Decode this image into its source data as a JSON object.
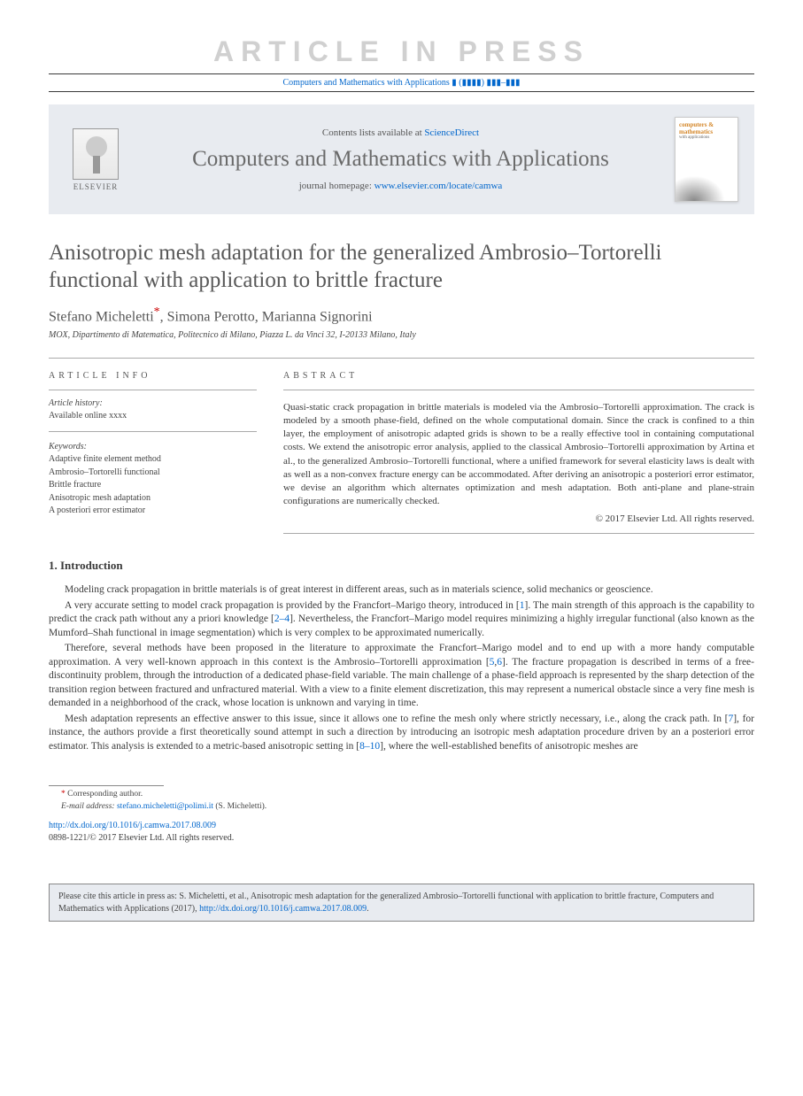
{
  "banner": "ARTICLE IN PRESS",
  "top_citation": "Computers and Mathematics with Applications ▮ (▮▮▮▮) ▮▮▮–▮▮▮",
  "header": {
    "contents_prefix": "Contents lists available at ",
    "contents_link": "ScienceDirect",
    "journal": "Computers and Mathematics with Applications",
    "homepage_prefix": "journal homepage: ",
    "homepage_url": "www.elsevier.com/locate/camwa",
    "elsevier": "ELSEVIER",
    "cover_title": "computers & mathematics",
    "cover_sub": "with applications"
  },
  "title": "Anisotropic mesh adaptation for the generalized Ambrosio–Tortorelli functional with application to brittle fracture",
  "authors_html": "Stefano Micheletti",
  "authors_rest": ", Simona Perotto, Marianna Signorini",
  "affiliation": "MOX, Dipartimento di Matematica, Politecnico di Milano, Piazza L. da Vinci 32, I-20133 Milano, Italy",
  "article_info": {
    "heading": "article info",
    "history_label": "Article history:",
    "history_line": "Available online xxxx",
    "keywords_label": "Keywords:",
    "keywords": [
      "Adaptive finite element method",
      "Ambrosio–Tortorelli functional",
      "Brittle fracture",
      "Anisotropic mesh adaptation",
      "A posteriori error estimator"
    ]
  },
  "abstract": {
    "heading": "abstract",
    "text": "Quasi-static crack propagation in brittle materials is modeled via the Ambrosio–Tortorelli approximation. The crack is modeled by a smooth phase-field, defined on the whole computational domain. Since the crack is confined to a thin layer, the employment of anisotropic adapted grids is shown to be a really effective tool in containing computational costs. We extend the anisotropic error analysis, applied to the classical Ambrosio–Tortorelli approximation by Artina et al., to the generalized Ambrosio–Tortorelli functional, where a unified framework for several elasticity laws is dealt with as well as a non-convex fracture energy can be accommodated. After deriving an anisotropic a posteriori error estimator, we devise an algorithm which alternates optimization and mesh adaptation. Both anti-plane and plane-strain configurations are numerically checked.",
    "copyright": "© 2017 Elsevier Ltd. All rights reserved."
  },
  "section1": {
    "heading": "1.  Introduction",
    "p1_a": "Modeling crack propagation in brittle materials is of great interest in different areas, such as in materials science, solid mechanics or geoscience.",
    "p2_a": "A very accurate setting to model crack propagation is provided by the Francfort–Marigo theory, introduced in [",
    "p2_b": "]. The main strength of this approach is the capability to predict the crack path without any a priori knowledge [",
    "p2_c": "]. Nevertheless, the Francfort–Marigo model requires minimizing a highly irregular functional (also known as the Mumford–Shah functional in image segmentation) which is very complex to be approximated numerically.",
    "p3_a": "Therefore, several methods have been proposed in the literature to approximate the Francfort–Marigo model and to end up with a more handy computable approximation. A very well-known approach in this context is the Ambrosio–Tortorelli approximation [",
    "p3_b": "]. The fracture propagation is described in terms of a free-discontinuity problem, through the introduction of a dedicated phase-field variable. The main challenge of a phase-field approach is represented by the sharp detection of the transition region between fractured and unfractured material. With a view to a finite element discretization, this may represent a numerical obstacle since a very fine mesh is demanded in a neighborhood of the crack, whose location is unknown and varying in time.",
    "p4_a": "Mesh adaptation represents an effective answer to this issue, since it allows one to refine the mesh only where strictly necessary, i.e., along the crack path. In [",
    "p4_b": "], for instance, the authors provide a first theoretically sound attempt in such a direction by introducing an isotropic mesh adaptation procedure driven by an a posteriori error estimator. This analysis is extended to a metric-based anisotropic setting in [",
    "p4_c": "], where the well-established benefits of anisotropic meshes are",
    "refs": {
      "r1": "1",
      "r24": "2–4",
      "r5": "5",
      "r6": "6",
      "r7": "7",
      "r810": "8–10"
    }
  },
  "footnotes": {
    "corr": "Corresponding author.",
    "email_label": "E-mail address:",
    "email": "stefano.micheletti@polimi.it",
    "email_who": "(S. Micheletti)."
  },
  "doi": {
    "url": "http://dx.doi.org/10.1016/j.camwa.2017.08.009",
    "line": "0898-1221/© 2017 Elsevier Ltd. All rights reserved."
  },
  "citebox_a": "Please cite this article in press as: S. Micheletti, et al., Anisotropic mesh adaptation for the generalized Ambrosio–Tortorelli functional with application to brittle fracture, Computers and Mathematics with Applications (2017), ",
  "citebox_url": "http://dx.doi.org/10.1016/j.camwa.2017.08.009",
  "citebox_b": "."
}
